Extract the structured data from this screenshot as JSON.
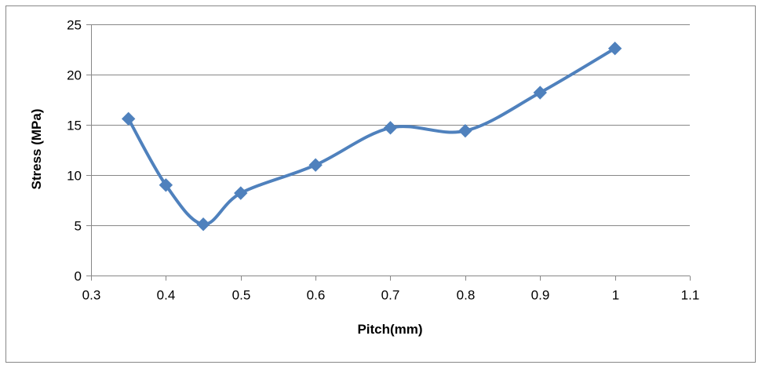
{
  "chart_data": {
    "type": "scatter",
    "title": "",
    "xlabel": "Pitch(mm)",
    "ylabel": "Stress (MPa)",
    "xlim": [
      0.3,
      1.1
    ],
    "ylim": [
      0,
      25
    ],
    "xticks": [
      "0.3",
      "0.4",
      "0.5",
      "0.6",
      "0.7",
      "0.8",
      "0.9",
      "1",
      "1.1"
    ],
    "yticks": [
      "0",
      "5",
      "10",
      "15",
      "20",
      "25"
    ],
    "grid": "horizontal",
    "legend": "none",
    "line_style": "smoothed",
    "marker": "diamond",
    "series": [
      {
        "x": [
          0.35,
          0.4,
          0.45,
          0.5,
          0.6,
          0.7,
          0.8,
          0.9,
          1.0
        ],
        "y": [
          15.6,
          9.0,
          5.1,
          8.2,
          11.0,
          14.7,
          14.4,
          18.2,
          22.6
        ],
        "color": "#4F81BD"
      }
    ]
  },
  "colors": {
    "series": "#4F81BD",
    "grid": "#878787",
    "axis": "#878787",
    "frame": "#878787"
  }
}
